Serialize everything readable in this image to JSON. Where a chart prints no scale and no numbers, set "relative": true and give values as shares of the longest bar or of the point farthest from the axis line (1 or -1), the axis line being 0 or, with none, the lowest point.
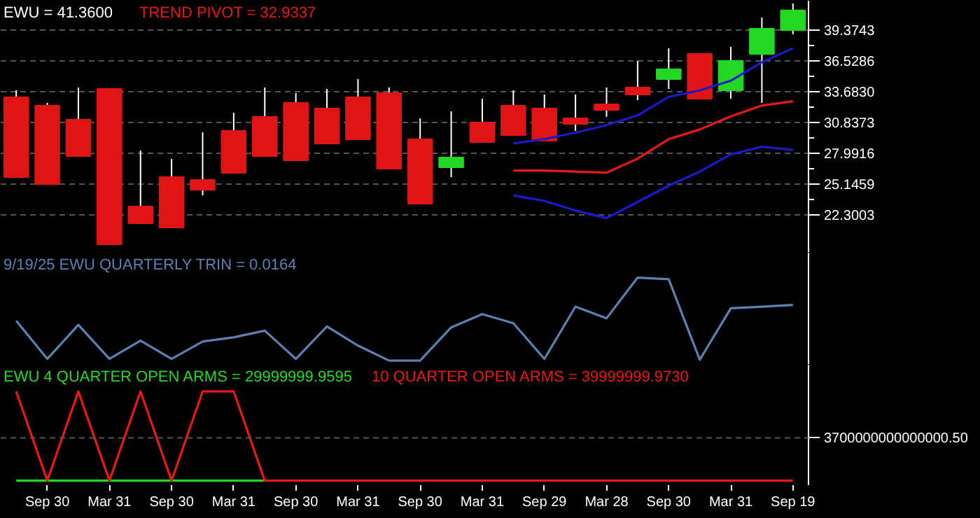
{
  "chart_data": [
    {
      "type": "candlestick",
      "title": "EWU = 41.3600",
      "categories": [
        null,
        null,
        null,
        null,
        null,
        null,
        null,
        null,
        null,
        null,
        null,
        null,
        null,
        null,
        null,
        null,
        null,
        null,
        null,
        null,
        null,
        null,
        null,
        null,
        null,
        null
      ],
      "ohlc": [
        [
          33.17,
          33.81,
          25.79,
          25.79
        ],
        [
          32.39,
          32.65,
          25.14,
          25.14
        ],
        [
          31.1,
          34.07,
          27.73,
          27.73
        ],
        [
          33.94,
          33.94,
          19.58,
          19.58
        ],
        [
          23.08,
          28.25,
          21.52,
          21.52
        ],
        [
          25.79,
          27.47,
          21.13,
          21.13
        ],
        [
          25.53,
          29.93,
          24.11,
          24.62
        ],
        [
          30.06,
          31.74,
          26.18,
          26.18
        ],
        [
          31.36,
          34.07,
          27.73,
          27.73
        ],
        [
          32.65,
          33.55,
          27.34,
          27.34
        ],
        [
          32.13,
          33.94,
          28.9,
          28.9
        ],
        [
          33.17,
          34.85,
          29.29,
          29.29
        ],
        [
          33.55,
          34.07,
          26.57,
          26.57
        ],
        [
          29.29,
          31.22,
          23.34,
          23.34
        ],
        [
          26.7,
          31.87,
          25.79,
          27.6
        ],
        [
          30.84,
          33.04,
          29.03,
          29.03
        ],
        [
          32.39,
          33.81,
          29.67,
          29.67
        ],
        [
          32.13,
          33.42,
          29.16,
          29.16
        ],
        [
          31.22,
          33.42,
          30.06,
          30.71
        ],
        [
          32.52,
          34.07,
          31.36,
          32.0
        ],
        [
          34.07,
          36.53,
          32.91,
          33.42
        ],
        [
          34.85,
          37.69,
          33.94,
          35.75
        ],
        [
          37.18,
          37.18,
          33.04,
          33.04
        ],
        [
          33.81,
          37.82,
          33.04,
          36.53
        ],
        [
          37.18,
          40.54,
          32.65,
          39.5
        ],
        [
          39.37,
          41.83,
          38.99,
          41.2
        ]
      ],
      "colors": [
        "#e01414",
        "#e01414",
        "#e01414",
        "#e01414",
        "#e01414",
        "#e01414",
        "#e01414",
        "#e01414",
        "#e01414",
        "#e01414",
        "#e01414",
        "#e01414",
        "#e01414",
        "#e01414",
        "#22d822",
        "#e01414",
        "#e01414",
        "#e01414",
        "#e01414",
        "#e01414",
        "#e01414",
        "#22d822",
        "#e01414",
        "#22d822",
        "#22d822",
        "#22d822"
      ],
      "series": [
        {
          "type": "line",
          "color": "#1a1acc",
          "values": [
            null,
            null,
            null,
            null,
            null,
            null,
            null,
            null,
            null,
            null,
            null,
            null,
            null,
            null,
            null,
            null,
            28.9,
            29.3,
            29.9,
            30.6,
            31.5,
            33.2,
            33.8,
            34.7,
            36.4,
            37.7
          ]
        },
        {
          "type": "line",
          "name": "TREND PIVOT = 32.9337",
          "color": "#e81818",
          "values": [
            null,
            null,
            null,
            null,
            null,
            null,
            null,
            null,
            null,
            null,
            null,
            null,
            null,
            null,
            null,
            null,
            26.4,
            26.4,
            26.3,
            26.2,
            27.5,
            29.3,
            30.2,
            31.4,
            32.4,
            32.8
          ]
        },
        {
          "type": "line",
          "color": "#1a1acc",
          "values": [
            null,
            null,
            null,
            null,
            null,
            null,
            null,
            null,
            null,
            null,
            null,
            null,
            null,
            null,
            null,
            null,
            24.1,
            23.6,
            22.7,
            22.0,
            23.5,
            25.0,
            26.3,
            27.9,
            28.6,
            28.3
          ]
        }
      ],
      "ylim": [
        18.81,
        42.09
      ],
      "yticks": [
        {
          "value": 22.3003,
          "label": "22.3003"
        },
        {
          "value": 25.1459,
          "label": "25.1459"
        },
        {
          "value": 27.9916,
          "label": "27.9916"
        },
        {
          "value": 30.8373,
          "label": "30.8373"
        },
        {
          "value": 33.683,
          "label": "33.6830"
        },
        {
          "value": 36.5286,
          "label": "36.5286"
        },
        {
          "value": 39.3743,
          "label": "39.3743"
        }
      ],
      "grid": "y",
      "tick_labels": "y"
    },
    {
      "type": "line",
      "relative": true,
      "title": "9/19/25  EWU QUARTERLY TRIN = 0.0164",
      "categories": [
        null,
        null,
        null,
        null,
        null,
        null,
        null,
        null,
        null,
        null,
        null,
        null,
        null,
        null,
        null,
        null,
        null,
        null,
        null,
        null,
        null,
        null,
        null,
        null,
        null,
        null
      ],
      "series": [
        {
          "color": "#5f7fb0",
          "values": [
            0.48,
            0.02,
            0.43,
            0.02,
            0.24,
            0.02,
            0.23,
            0.28,
            0.36,
            0.02,
            0.41,
            0.18,
            0,
            0,
            0.4,
            0.56,
            0.45,
            0.02,
            0.65,
            0.51,
            1,
            0.98,
            0.01,
            0.63,
            0.65,
            0.67
          ]
        }
      ],
      "tick_labels": false
    },
    {
      "type": "line",
      "relative": true,
      "categories": [
        null,
        "Sep 30",
        null,
        "Mar 31",
        null,
        "Sep 30",
        null,
        "Mar 31",
        null,
        "Sep 30",
        null,
        "Mar 31",
        null,
        "Sep 30",
        null,
        "Mar 31",
        null,
        "Sep 29",
        null,
        "Mar 28",
        null,
        "Sep 30",
        null,
        "Mar 31",
        null,
        "Sep 19"
      ],
      "series": [
        {
          "name": "EWU 4 QUARTER OPEN ARMS = 29999999.9595",
          "color": "#22d822",
          "values": [
            0,
            0,
            0,
            0,
            0,
            0,
            0,
            0,
            0,
            null,
            null,
            null,
            null,
            null,
            null,
            null,
            null,
            null,
            null,
            null,
            null,
            null,
            null,
            null,
            null,
            null
          ]
        },
        {
          "name": "10 QUARTER OPEN ARMS = 39999999.9730",
          "color": "#e81818",
          "values": [
            1,
            0,
            1,
            0,
            1,
            0,
            1,
            1,
            0,
            0,
            0,
            0,
            0,
            0,
            0,
            0,
            0,
            0,
            0,
            0,
            0,
            0,
            0,
            0,
            0,
            0
          ]
        }
      ],
      "ref_lines": [
        {
          "axis": "y",
          "value": 0.48,
          "color": "#555555",
          "line_style": "dashed"
        }
      ],
      "annotations": [
        "3700000000000000.50"
      ],
      "tick_labels": "x"
    }
  ]
}
